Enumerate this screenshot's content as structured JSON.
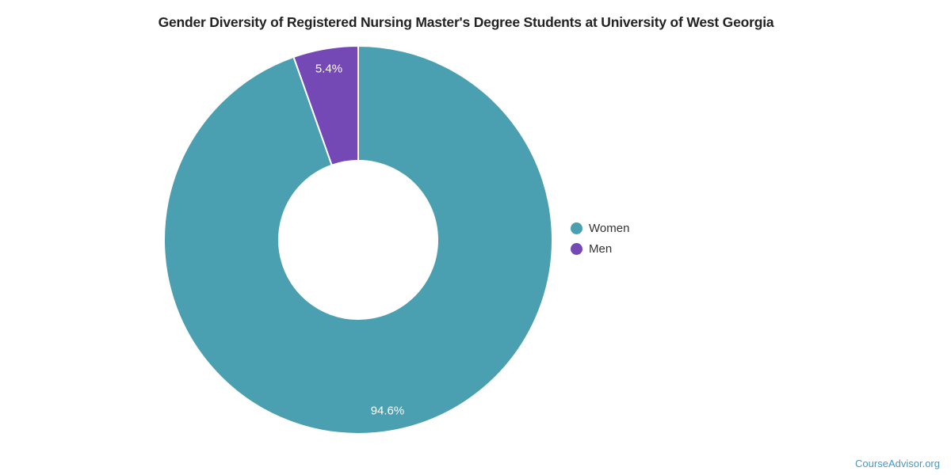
{
  "page": {
    "background": "#ffffff",
    "watermark": "CourseAdvisor.org",
    "watermark_color": "#4a97c5"
  },
  "chart_data": {
    "type": "pie",
    "donut": true,
    "title": "Gender Diversity of Registered Nursing Master's Degree Students at University of West Georgia",
    "categories": [
      "Women",
      "Men"
    ],
    "values": [
      94.6,
      5.4
    ],
    "series": [
      {
        "label": "Women",
        "value": 94.6,
        "value_label": "94.6%",
        "color": "#4a9fb0"
      },
      {
        "label": "Men",
        "value": 5.4,
        "value_label": "5.4%",
        "color": "#7448b5"
      }
    ],
    "legend_position": "right",
    "start_angle_deg": 0,
    "clockwise": true,
    "geometry": {
      "cx": 452,
      "cy": 303,
      "outer_radius": 245,
      "inner_radius": 100,
      "label_radius": 219
    },
    "slice_border_color": "#ffffff",
    "slice_border_width": 2,
    "slice_label_color": "#ffffff",
    "legend_text_color": "#333333"
  }
}
